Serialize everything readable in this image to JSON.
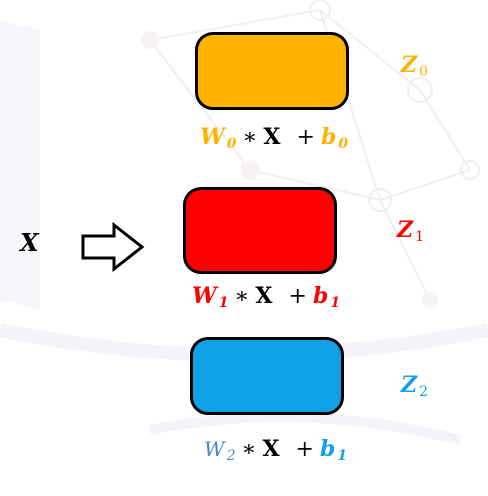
{
  "colors": {
    "orange": "#FFB300",
    "red": "#FF0000",
    "blue": "#10A0E8",
    "blue_light": "#4A86C8",
    "black": "#000000"
  },
  "input": {
    "label": "X"
  },
  "outputs": [
    {
      "z": "Z",
      "z_sub": "0",
      "w": "W",
      "w_sub": "0",
      "op": "∗",
      "x": "X",
      "plus": "+",
      "b": "b",
      "b_sub": "0"
    },
    {
      "z": "Z",
      "z_sub": "1",
      "w": "W",
      "w_sub": "1",
      "op": "∗",
      "x": "X",
      "plus": "+",
      "b": "b",
      "b_sub": "1"
    },
    {
      "z": "Z",
      "z_sub": "2",
      "w": "W",
      "w_sub": "2",
      "op": "∗",
      "x": "X",
      "plus": "+",
      "b": "b",
      "b_sub": "1"
    }
  ]
}
